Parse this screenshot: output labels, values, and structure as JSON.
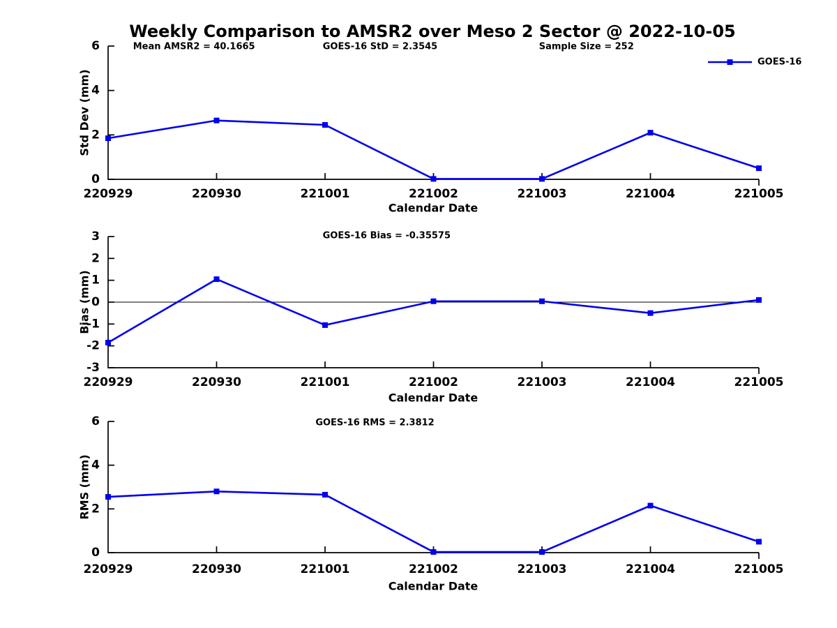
{
  "figure": {
    "title": "Weekly Comparison to AMSR2 over Meso 2 Sector @ 2022-10-05",
    "background_color": "#ffffff",
    "line_color": "#0000ee",
    "axis_color": "#000000",
    "text_color": "#000000"
  },
  "legend": {
    "label": "GOES-16",
    "marker": "square",
    "position": "top-right"
  },
  "chart_data": [
    {
      "type": "line",
      "categories": [
        "220929",
        "220930",
        "221001",
        "221002",
        "221003",
        "221004",
        "221005"
      ],
      "series": [
        {
          "name": "GOES-16",
          "values": [
            1.85,
            2.65,
            2.45,
            0.02,
            0.02,
            2.1,
            0.5
          ]
        }
      ],
      "xlabel": "Calendar Date",
      "ylabel": "Std Dev (mm)",
      "ylim": [
        0,
        6
      ],
      "yticks": [
        0,
        2,
        4,
        6
      ],
      "grid": false,
      "zero_line": false,
      "annotations": [
        "Mean AMSR2 = 40.1665",
        "GOES-16 StD = 2.3545",
        "Sample Size = 252"
      ]
    },
    {
      "type": "line",
      "categories": [
        "220929",
        "220930",
        "221001",
        "221002",
        "221003",
        "221004",
        "221005"
      ],
      "series": [
        {
          "name": "GOES-16",
          "values": [
            -1.85,
            1.05,
            -1.05,
            0.04,
            0.04,
            -0.5,
            0.1
          ]
        }
      ],
      "xlabel": "Calendar Date",
      "ylabel": "Bias (mm)",
      "ylim": [
        -3,
        3
      ],
      "yticks": [
        -3,
        -2,
        -1,
        0,
        1,
        2,
        3
      ],
      "grid": false,
      "zero_line": true,
      "annotations": [
        "GOES-16 Bias  = -0.35575"
      ]
    },
    {
      "type": "line",
      "categories": [
        "220929",
        "220930",
        "221001",
        "221002",
        "221003",
        "221004",
        "221005"
      ],
      "series": [
        {
          "name": "GOES-16",
          "values": [
            2.55,
            2.8,
            2.65,
            0.03,
            0.03,
            2.15,
            0.5
          ]
        }
      ],
      "xlabel": "Calendar Date",
      "ylabel": "RMS (mm)",
      "ylim": [
        0,
        6
      ],
      "yticks": [
        0,
        2,
        4,
        6
      ],
      "grid": false,
      "zero_line": false,
      "annotations": [
        "GOES-16 RMS = 2.3812"
      ]
    }
  ]
}
